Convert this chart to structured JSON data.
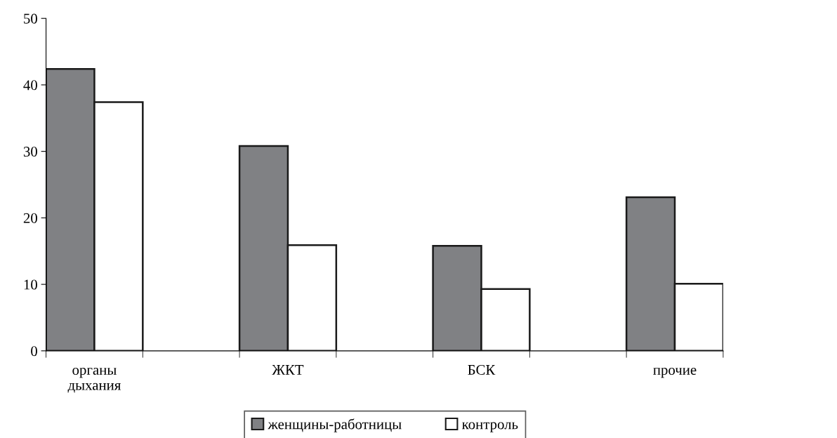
{
  "chart_data": {
    "type": "bar",
    "categories": [
      "органы\nдыхания",
      "ЖКТ",
      "БСК",
      "прочие"
    ],
    "series": [
      {
        "name": "женщины-работницы",
        "color": "#808184",
        "values": [
          42.4,
          30.8,
          15.8,
          23.1
        ]
      },
      {
        "name": "контроль",
        "color": "#ffffff",
        "values": [
          37.4,
          15.9,
          9.3,
          10.1
        ]
      }
    ],
    "ylim": [
      0,
      50
    ],
    "yticks": [
      0,
      10,
      20,
      30,
      40,
      50
    ],
    "grid": false,
    "legend": "bottom"
  }
}
